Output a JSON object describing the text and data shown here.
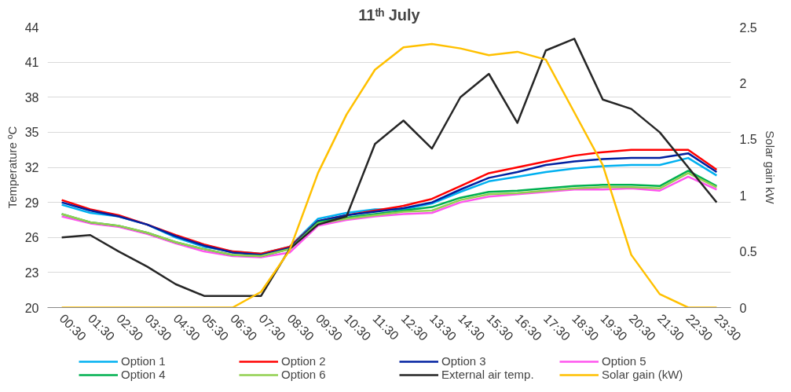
{
  "chart_data": {
    "type": "line",
    "title": "11ᵗʰ July",
    "ylabel": "Temperature ºC",
    "y2label": "Solar gain kW",
    "categories": [
      "00:30",
      "01:30",
      "02:30",
      "03:30",
      "04:30",
      "05:30",
      "06:30",
      "07:30",
      "08:30",
      "09:30",
      "10:30",
      "11:30",
      "12:30",
      "13:30",
      "14:30",
      "15:30",
      "16:30",
      "17:30",
      "18:30",
      "19:30",
      "20:30",
      "21:30",
      "22:30",
      "23:30"
    ],
    "ylim": [
      20,
      44
    ],
    "yticks": [
      20,
      23,
      26,
      29,
      32,
      35,
      38,
      41,
      44
    ],
    "y2lim": [
      0,
      2.5
    ],
    "y2ticks": [
      0,
      0.5,
      1,
      1.5,
      2,
      2.5
    ],
    "grid": "y",
    "legend": "bottom",
    "series": [
      {
        "name": "Option 1",
        "color": "#00b0f0",
        "values": [
          28.8,
          28.1,
          27.8,
          27.1,
          26.0,
          25.2,
          24.8,
          24.6,
          25.2,
          27.6,
          28.1,
          28.4,
          28.4,
          28.9,
          29.9,
          30.8,
          31.2,
          31.6,
          31.9,
          32.1,
          32.2,
          32.2,
          32.8,
          31.3
        ]
      },
      {
        "name": "Option 2",
        "color": "#ff0000",
        "values": [
          29.2,
          28.4,
          27.9,
          27.1,
          26.2,
          25.4,
          24.8,
          24.6,
          25.2,
          27.4,
          27.9,
          28.3,
          28.7,
          29.3,
          30.4,
          31.5,
          32.0,
          32.5,
          33.0,
          33.3,
          33.5,
          33.5,
          33.5,
          31.8
        ]
      },
      {
        "name": "Option 3",
        "color": "#0020a0",
        "values": [
          29.0,
          28.3,
          27.8,
          27.1,
          26.1,
          25.3,
          24.7,
          24.5,
          25.1,
          27.4,
          27.9,
          28.2,
          28.5,
          29.0,
          30.1,
          31.1,
          31.6,
          32.2,
          32.5,
          32.7,
          32.8,
          32.8,
          33.2,
          31.6
        ]
      },
      {
        "name": "Option 5",
        "color": "#ff55ee",
        "values": [
          27.8,
          27.2,
          26.9,
          26.3,
          25.5,
          24.8,
          24.4,
          24.3,
          24.7,
          27.0,
          27.5,
          27.8,
          28.0,
          28.1,
          29.0,
          29.5,
          29.7,
          29.9,
          30.1,
          30.1,
          30.2,
          30.0,
          31.2,
          30.1
        ]
      },
      {
        "name": "Option 4",
        "color": "#00b050",
        "values": [
          28.0,
          27.3,
          27.0,
          26.4,
          25.6,
          25.0,
          24.5,
          24.4,
          25.0,
          27.3,
          27.7,
          28.0,
          28.3,
          28.6,
          29.4,
          29.9,
          30.0,
          30.2,
          30.4,
          30.5,
          30.5,
          30.4,
          31.7,
          30.4
        ]
      },
      {
        "name": "Option 6",
        "color": "#92d050",
        "values": [
          28.0,
          27.3,
          27.0,
          26.4,
          25.6,
          25.0,
          24.5,
          24.4,
          25.0,
          27.2,
          27.6,
          27.9,
          28.2,
          28.3,
          29.2,
          29.7,
          29.8,
          30.0,
          30.2,
          30.3,
          30.3,
          30.2,
          31.5,
          30.3
        ]
      },
      {
        "name": "External air temp.",
        "color": "#262626",
        "values": [
          26.0,
          26.2,
          24.8,
          23.5,
          22.0,
          21.0,
          21.0,
          21.0,
          25.0,
          27.1,
          27.8,
          34.0,
          36.0,
          33.6,
          38.0,
          40.0,
          35.8,
          42.0,
          43.0,
          37.8,
          37.0,
          35.0,
          32.0,
          29.0
        ]
      },
      {
        "name": "Solar gain (kW)",
        "color": "#ffc000",
        "axis": "y2",
        "values": [
          0,
          0,
          0,
          0,
          0,
          0,
          0,
          0.14,
          0.51,
          1.2,
          1.72,
          2.12,
          2.32,
          2.35,
          2.31,
          2.25,
          2.28,
          2.21,
          1.74,
          1.27,
          0.47,
          0.12,
          0,
          0
        ]
      }
    ]
  }
}
